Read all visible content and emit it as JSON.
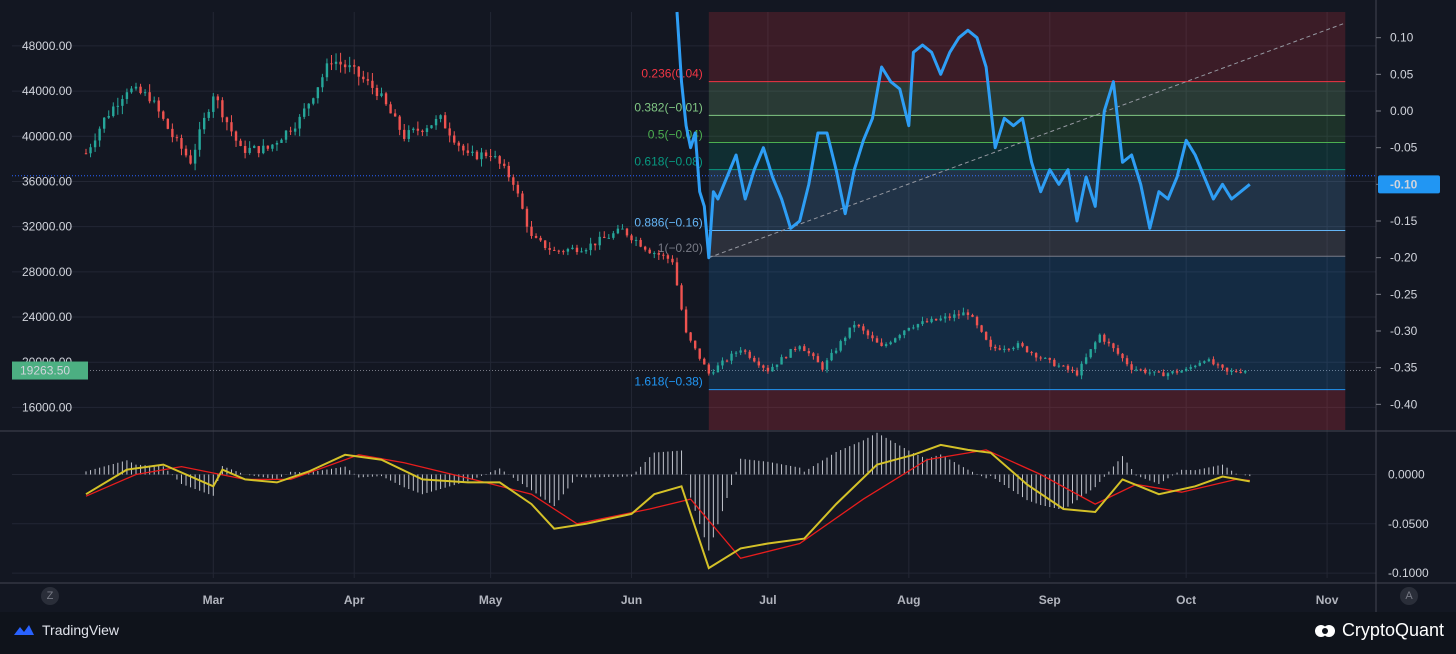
{
  "chart_data": [
    {
      "type": "candlestick",
      "title": "",
      "x_ticks": [
        "Mar",
        "Apr",
        "May",
        "Jun",
        "Jul",
        "Aug",
        "Sep",
        "Oct",
        "Nov"
      ],
      "y_ticks": [
        "48000.00",
        "44000.00",
        "40000.00",
        "36000.00",
        "32000.00",
        "28000.00",
        "24000.00",
        "20000.00",
        "16000.00"
      ],
      "ylim": [
        14000,
        51000
      ],
      "last_price_label": "19263.50",
      "last_price": 19263.5,
      "reference_level": 36500,
      "x_range": [
        "2022-02-01",
        "2022-11-10"
      ],
      "colors": {
        "up": "#26a69a",
        "down": "#ef5350"
      },
      "series": [
        {
          "date": "2022-02-01",
          "value": 38500
        },
        {
          "date": "2022-02-05",
          "value": 41500
        },
        {
          "date": "2022-02-10",
          "value": 44200
        },
        {
          "date": "2022-02-15",
          "value": 43500
        },
        {
          "date": "2022-02-20",
          "value": 40000
        },
        {
          "date": "2022-02-24",
          "value": 37800
        },
        {
          "date": "2022-03-01",
          "value": 43800
        },
        {
          "date": "2022-03-07",
          "value": 38800
        },
        {
          "date": "2022-03-13",
          "value": 38900
        },
        {
          "date": "2022-03-20",
          "value": 41500
        },
        {
          "date": "2022-03-27",
          "value": 46800
        },
        {
          "date": "2022-03-31",
          "value": 46000
        },
        {
          "date": "2022-04-06",
          "value": 44000
        },
        {
          "date": "2022-04-12",
          "value": 40000
        },
        {
          "date": "2022-04-20",
          "value": 41500
        },
        {
          "date": "2022-04-26",
          "value": 38200
        },
        {
          "date": "2022-05-01",
          "value": 38500
        },
        {
          "date": "2022-05-06",
          "value": 36000
        },
        {
          "date": "2022-05-10",
          "value": 31000
        },
        {
          "date": "2022-05-15",
          "value": 29800
        },
        {
          "date": "2022-05-22",
          "value": 30200
        },
        {
          "date": "2022-05-30",
          "value": 31700
        },
        {
          "date": "2022-06-05",
          "value": 29900
        },
        {
          "date": "2022-06-10",
          "value": 29000
        },
        {
          "date": "2022-06-13",
          "value": 22500
        },
        {
          "date": "2022-06-18",
          "value": 19000
        },
        {
          "date": "2022-06-25",
          "value": 21200
        },
        {
          "date": "2022-07-01",
          "value": 19300
        },
        {
          "date": "2022-07-08",
          "value": 21600
        },
        {
          "date": "2022-07-13",
          "value": 19500
        },
        {
          "date": "2022-07-20",
          "value": 23400
        },
        {
          "date": "2022-07-26",
          "value": 21300
        },
        {
          "date": "2022-08-01",
          "value": 23200
        },
        {
          "date": "2022-08-08",
          "value": 23800
        },
        {
          "date": "2022-08-14",
          "value": 24400
        },
        {
          "date": "2022-08-19",
          "value": 21200
        },
        {
          "date": "2022-08-25",
          "value": 21500
        },
        {
          "date": "2022-09-01",
          "value": 20000
        },
        {
          "date": "2022-09-07",
          "value": 19000
        },
        {
          "date": "2022-09-12",
          "value": 22400
        },
        {
          "date": "2022-09-19",
          "value": 19500
        },
        {
          "date": "2022-09-25",
          "value": 18900
        },
        {
          "date": "2022-10-01",
          "value": 19300
        },
        {
          "date": "2022-10-05",
          "value": 20300
        },
        {
          "date": "2022-10-10",
          "value": 19100
        },
        {
          "date": "2022-10-14",
          "value": 19300
        }
      ]
    },
    {
      "type": "line",
      "right_axis_ticks": [
        "0.10",
        "0.05",
        "0.00",
        "-0.05",
        "-0.10",
        "-0.15",
        "-0.20",
        "-0.25",
        "-0.30",
        "-0.35",
        "-0.40"
      ],
      "ylim": [
        -0.435,
        0.135
      ],
      "last_value_label": "-0.10",
      "color": "#2e9ef5",
      "series": [
        {
          "date": "2022-06-11",
          "value": 0.135
        },
        {
          "date": "2022-06-12",
          "value": 0.04
        },
        {
          "date": "2022-06-13",
          "value": -0.02
        },
        {
          "date": "2022-06-14",
          "value": -0.05
        },
        {
          "date": "2022-06-15",
          "value": -0.03
        },
        {
          "date": "2022-06-16",
          "value": -0.11
        },
        {
          "date": "2022-06-17",
          "value": -0.13
        },
        {
          "date": "2022-06-18",
          "value": -0.2
        },
        {
          "date": "2022-06-19",
          "value": -0.11
        },
        {
          "date": "2022-06-20",
          "value": -0.12
        },
        {
          "date": "2022-06-22",
          "value": -0.09
        },
        {
          "date": "2022-06-24",
          "value": -0.06
        },
        {
          "date": "2022-06-26",
          "value": -0.12
        },
        {
          "date": "2022-06-28",
          "value": -0.08
        },
        {
          "date": "2022-06-30",
          "value": -0.05
        },
        {
          "date": "2022-07-02",
          "value": -0.09
        },
        {
          "date": "2022-07-04",
          "value": -0.12
        },
        {
          "date": "2022-07-06",
          "value": -0.16
        },
        {
          "date": "2022-07-08",
          "value": -0.15
        },
        {
          "date": "2022-07-10",
          "value": -0.1
        },
        {
          "date": "2022-07-12",
          "value": -0.03
        },
        {
          "date": "2022-07-14",
          "value": -0.03
        },
        {
          "date": "2022-07-16",
          "value": -0.08
        },
        {
          "date": "2022-07-18",
          "value": -0.14
        },
        {
          "date": "2022-07-20",
          "value": -0.08
        },
        {
          "date": "2022-07-22",
          "value": -0.04
        },
        {
          "date": "2022-07-24",
          "value": -0.01
        },
        {
          "date": "2022-07-26",
          "value": 0.06
        },
        {
          "date": "2022-07-28",
          "value": 0.04
        },
        {
          "date": "2022-07-30",
          "value": 0.03
        },
        {
          "date": "2022-08-01",
          "value": -0.02
        },
        {
          "date": "2022-08-02",
          "value": 0.08
        },
        {
          "date": "2022-08-04",
          "value": 0.09
        },
        {
          "date": "2022-08-06",
          "value": 0.08
        },
        {
          "date": "2022-08-08",
          "value": 0.05
        },
        {
          "date": "2022-08-10",
          "value": 0.08
        },
        {
          "date": "2022-08-12",
          "value": 0.1
        },
        {
          "date": "2022-08-14",
          "value": 0.11
        },
        {
          "date": "2022-08-16",
          "value": 0.1
        },
        {
          "date": "2022-08-18",
          "value": 0.06
        },
        {
          "date": "2022-08-20",
          "value": -0.05
        },
        {
          "date": "2022-08-22",
          "value": -0.01
        },
        {
          "date": "2022-08-24",
          "value": -0.02
        },
        {
          "date": "2022-08-26",
          "value": -0.01
        },
        {
          "date": "2022-08-28",
          "value": -0.07
        },
        {
          "date": "2022-08-30",
          "value": -0.11
        },
        {
          "date": "2022-09-01",
          "value": -0.08
        },
        {
          "date": "2022-09-03",
          "value": -0.1
        },
        {
          "date": "2022-09-05",
          "value": -0.08
        },
        {
          "date": "2022-09-07",
          "value": -0.15
        },
        {
          "date": "2022-09-09",
          "value": -0.09
        },
        {
          "date": "2022-09-11",
          "value": -0.13
        },
        {
          "date": "2022-09-13",
          "value": 0.0
        },
        {
          "date": "2022-09-15",
          "value": 0.04
        },
        {
          "date": "2022-09-17",
          "value": -0.07
        },
        {
          "date": "2022-09-19",
          "value": -0.06
        },
        {
          "date": "2022-09-21",
          "value": -0.1
        },
        {
          "date": "2022-09-23",
          "value": -0.16
        },
        {
          "date": "2022-09-25",
          "value": -0.11
        },
        {
          "date": "2022-09-27",
          "value": -0.12
        },
        {
          "date": "2022-09-29",
          "value": -0.09
        },
        {
          "date": "2022-10-01",
          "value": -0.04
        },
        {
          "date": "2022-10-03",
          "value": -0.06
        },
        {
          "date": "2022-10-05",
          "value": -0.09
        },
        {
          "date": "2022-10-07",
          "value": -0.12
        },
        {
          "date": "2022-10-09",
          "value": -0.1
        },
        {
          "date": "2022-10-11",
          "value": -0.12
        },
        {
          "date": "2022-10-13",
          "value": -0.11
        },
        {
          "date": "2022-10-15",
          "value": -0.1
        }
      ],
      "fibonacci": {
        "start_date": "2022-06-18",
        "end_date": "2022-11-05",
        "levels": [
          {
            "label": "0.236(0.04)",
            "value": 0.04,
            "color": "#f23645",
            "fill": "rgba(242,54,69,0.18)"
          },
          {
            "label": "0.382(−0.01)",
            "value": -0.006,
            "color": "#81c784",
            "fill": "rgba(129,199,132,0.20)"
          },
          {
            "label": "0.5(−0.04)",
            "value": -0.043,
            "color": "#4caf50",
            "fill": "rgba(76,175,80,0.18)"
          },
          {
            "label": "0.618(−0.08)",
            "value": -0.08,
            "color": "#089981",
            "fill": "rgba(8,153,129,0.18)"
          },
          {
            "label": "0.886(−0.16)",
            "value": -0.163,
            "color": "#64b5f6",
            "fill": "rgba(100,181,246,0.18)"
          },
          {
            "label": "1(−0.20)",
            "value": -0.198,
            "color": "#787b86",
            "fill": "rgba(120,123,134,0.25)"
          },
          {
            "label": "1.618(−0.38)",
            "value": -0.38,
            "color": "#2196f3",
            "fill": "rgba(33,150,243,0.16)"
          }
        ],
        "top_fill": "rgba(242,54,69,0.18)",
        "bottom_fill": "rgba(242,54,69,0.22)",
        "trend_line": {
          "from_value": -0.2,
          "to_value": 0.12
        }
      }
    },
    {
      "type": "macd",
      "y_ticks": [
        "0.0000",
        "-0.0500",
        "-0.1000"
      ],
      "ylim": [
        -0.105,
        0.035
      ],
      "colors": {
        "macd": "#d4c128",
        "signal": "#e81d1d",
        "histogram": "#e0e3eb"
      },
      "macd_series": [
        {
          "date": "2022-02-01",
          "value": -0.02
        },
        {
          "date": "2022-02-10",
          "value": 0.005
        },
        {
          "date": "2022-02-18",
          "value": 0.01
        },
        {
          "date": "2022-03-01",
          "value": -0.012
        },
        {
          "date": "2022-03-03",
          "value": 0.005
        },
        {
          "date": "2022-03-08",
          "value": -0.005
        },
        {
          "date": "2022-03-15",
          "value": -0.008
        },
        {
          "date": "2022-03-22",
          "value": 0.003
        },
        {
          "date": "2022-03-30",
          "value": 0.02
        },
        {
          "date": "2022-04-07",
          "value": 0.015
        },
        {
          "date": "2022-04-16",
          "value": -0.005
        },
        {
          "date": "2022-04-26",
          "value": -0.008
        },
        {
          "date": "2022-05-03",
          "value": -0.008
        },
        {
          "date": "2022-05-10",
          "value": -0.03
        },
        {
          "date": "2022-05-15",
          "value": -0.055
        },
        {
          "date": "2022-05-22",
          "value": -0.05
        },
        {
          "date": "2022-06-01",
          "value": -0.04
        },
        {
          "date": "2022-06-06",
          "value": -0.02
        },
        {
          "date": "2022-06-12",
          "value": -0.012
        },
        {
          "date": "2022-06-18",
          "value": -0.095
        },
        {
          "date": "2022-06-25",
          "value": -0.075
        },
        {
          "date": "2022-07-01",
          "value": -0.07
        },
        {
          "date": "2022-07-09",
          "value": -0.065
        },
        {
          "date": "2022-07-16",
          "value": -0.03
        },
        {
          "date": "2022-07-25",
          "value": 0.01
        },
        {
          "date": "2022-08-02",
          "value": 0.02
        },
        {
          "date": "2022-08-08",
          "value": 0.03
        },
        {
          "date": "2022-08-14",
          "value": 0.025
        },
        {
          "date": "2022-08-19",
          "value": 0.022
        },
        {
          "date": "2022-08-27",
          "value": -0.01
        },
        {
          "date": "2022-09-04",
          "value": -0.035
        },
        {
          "date": "2022-09-11",
          "value": -0.038
        },
        {
          "date": "2022-09-17",
          "value": -0.005
        },
        {
          "date": "2022-09-25",
          "value": -0.02
        },
        {
          "date": "2022-10-03",
          "value": -0.012
        },
        {
          "date": "2022-10-09",
          "value": -0.002
        },
        {
          "date": "2022-10-15",
          "value": -0.007
        }
      ],
      "signal_series": [
        {
          "date": "2022-02-01",
          "value": -0.022
        },
        {
          "date": "2022-02-12",
          "value": 0.0
        },
        {
          "date": "2022-02-22",
          "value": 0.008
        },
        {
          "date": "2022-03-08",
          "value": -0.005
        },
        {
          "date": "2022-03-18",
          "value": -0.005
        },
        {
          "date": "2022-04-02",
          "value": 0.02
        },
        {
          "date": "2022-04-12",
          "value": 0.012
        },
        {
          "date": "2022-04-28",
          "value": -0.006
        },
        {
          "date": "2022-05-10",
          "value": -0.02
        },
        {
          "date": "2022-05-20",
          "value": -0.05
        },
        {
          "date": "2022-06-05",
          "value": -0.035
        },
        {
          "date": "2022-06-14",
          "value": -0.025
        },
        {
          "date": "2022-06-25",
          "value": -0.085
        },
        {
          "date": "2022-07-08",
          "value": -0.07
        },
        {
          "date": "2022-07-22",
          "value": -0.025
        },
        {
          "date": "2022-08-05",
          "value": 0.015
        },
        {
          "date": "2022-08-18",
          "value": 0.025
        },
        {
          "date": "2022-08-30",
          "value": 0.0
        },
        {
          "date": "2022-09-11",
          "value": -0.03
        },
        {
          "date": "2022-09-20",
          "value": -0.01
        },
        {
          "date": "2022-09-30",
          "value": -0.018
        },
        {
          "date": "2022-10-12",
          "value": -0.005
        },
        {
          "date": "2022-10-15",
          "value": -0.006
        }
      ]
    }
  ],
  "footer": {
    "tradingview_label": "TradingView",
    "cryptoquant_label": "CryptoQuant",
    "left_corner": "Z",
    "right_corner": "A"
  }
}
